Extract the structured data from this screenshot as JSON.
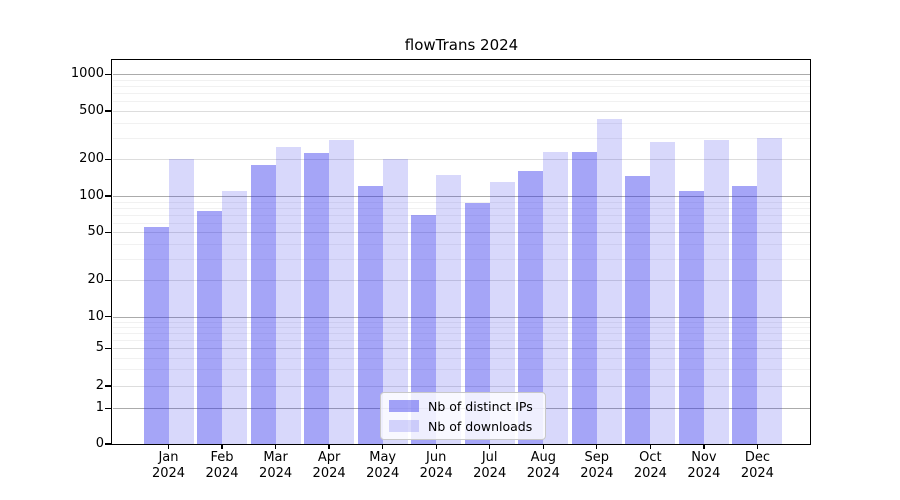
{
  "title": "flowTrans 2024",
  "legend": {
    "items": [
      {
        "label": "Nb of distinct IPs",
        "color": "rgba(40,40,235,0.42)",
        "color_hex_on_white": "#a7a7f3"
      },
      {
        "label": "Nb of downloads",
        "color": "rgba(40,40,235,0.18)",
        "color_hex_on_white": "#d8d8fb"
      }
    ],
    "position": "lower center"
  },
  "chart_data": {
    "type": "bar",
    "title": "flowTrans 2024",
    "categories": [
      "Jan 2024",
      "Feb 2024",
      "Mar 2024",
      "Apr 2024",
      "May 2024",
      "Jun 2024",
      "Jul 2024",
      "Aug 2024",
      "Sep 2024",
      "Oct 2024",
      "Nov 2024",
      "Dec 2024"
    ],
    "x_tick_line1": [
      "Jan",
      "Feb",
      "Mar",
      "Apr",
      "May",
      "Jun",
      "Jul",
      "Aug",
      "Sep",
      "Oct",
      "Nov",
      "Dec"
    ],
    "x_tick_line2": "2024",
    "series": [
      {
        "name": "Nb of distinct IPs",
        "color": "rgba(40,40,235,0.42)",
        "values": [
          55,
          75,
          180,
          225,
          120,
          70,
          88,
          160,
          230,
          145,
          110,
          122
        ]
      },
      {
        "name": "Nb of downloads",
        "color": "rgba(40,40,235,0.18)",
        "values": [
          200,
          110,
          255,
          290,
          200,
          150,
          130,
          230,
          430,
          280,
          290,
          300
        ]
      }
    ],
    "yscale": "symlog",
    "yticks": [
      0,
      1,
      2,
      5,
      10,
      20,
      50,
      100,
      200,
      500,
      1000
    ],
    "minor_gridlines": [
      3,
      4,
      6,
      7,
      8,
      9,
      30,
      40,
      60,
      70,
      80,
      90,
      300,
      400,
      600,
      700,
      800,
      900
    ],
    "ylim": [
      0,
      1280
    ],
    "xlabel": "",
    "ylabel": "",
    "grid": true,
    "legend_position": "lower center",
    "gridline_colors": {
      "power_of_ten": "#ababab",
      "labeled": "#dddddd",
      "minor": "#f1f1f1"
    }
  }
}
